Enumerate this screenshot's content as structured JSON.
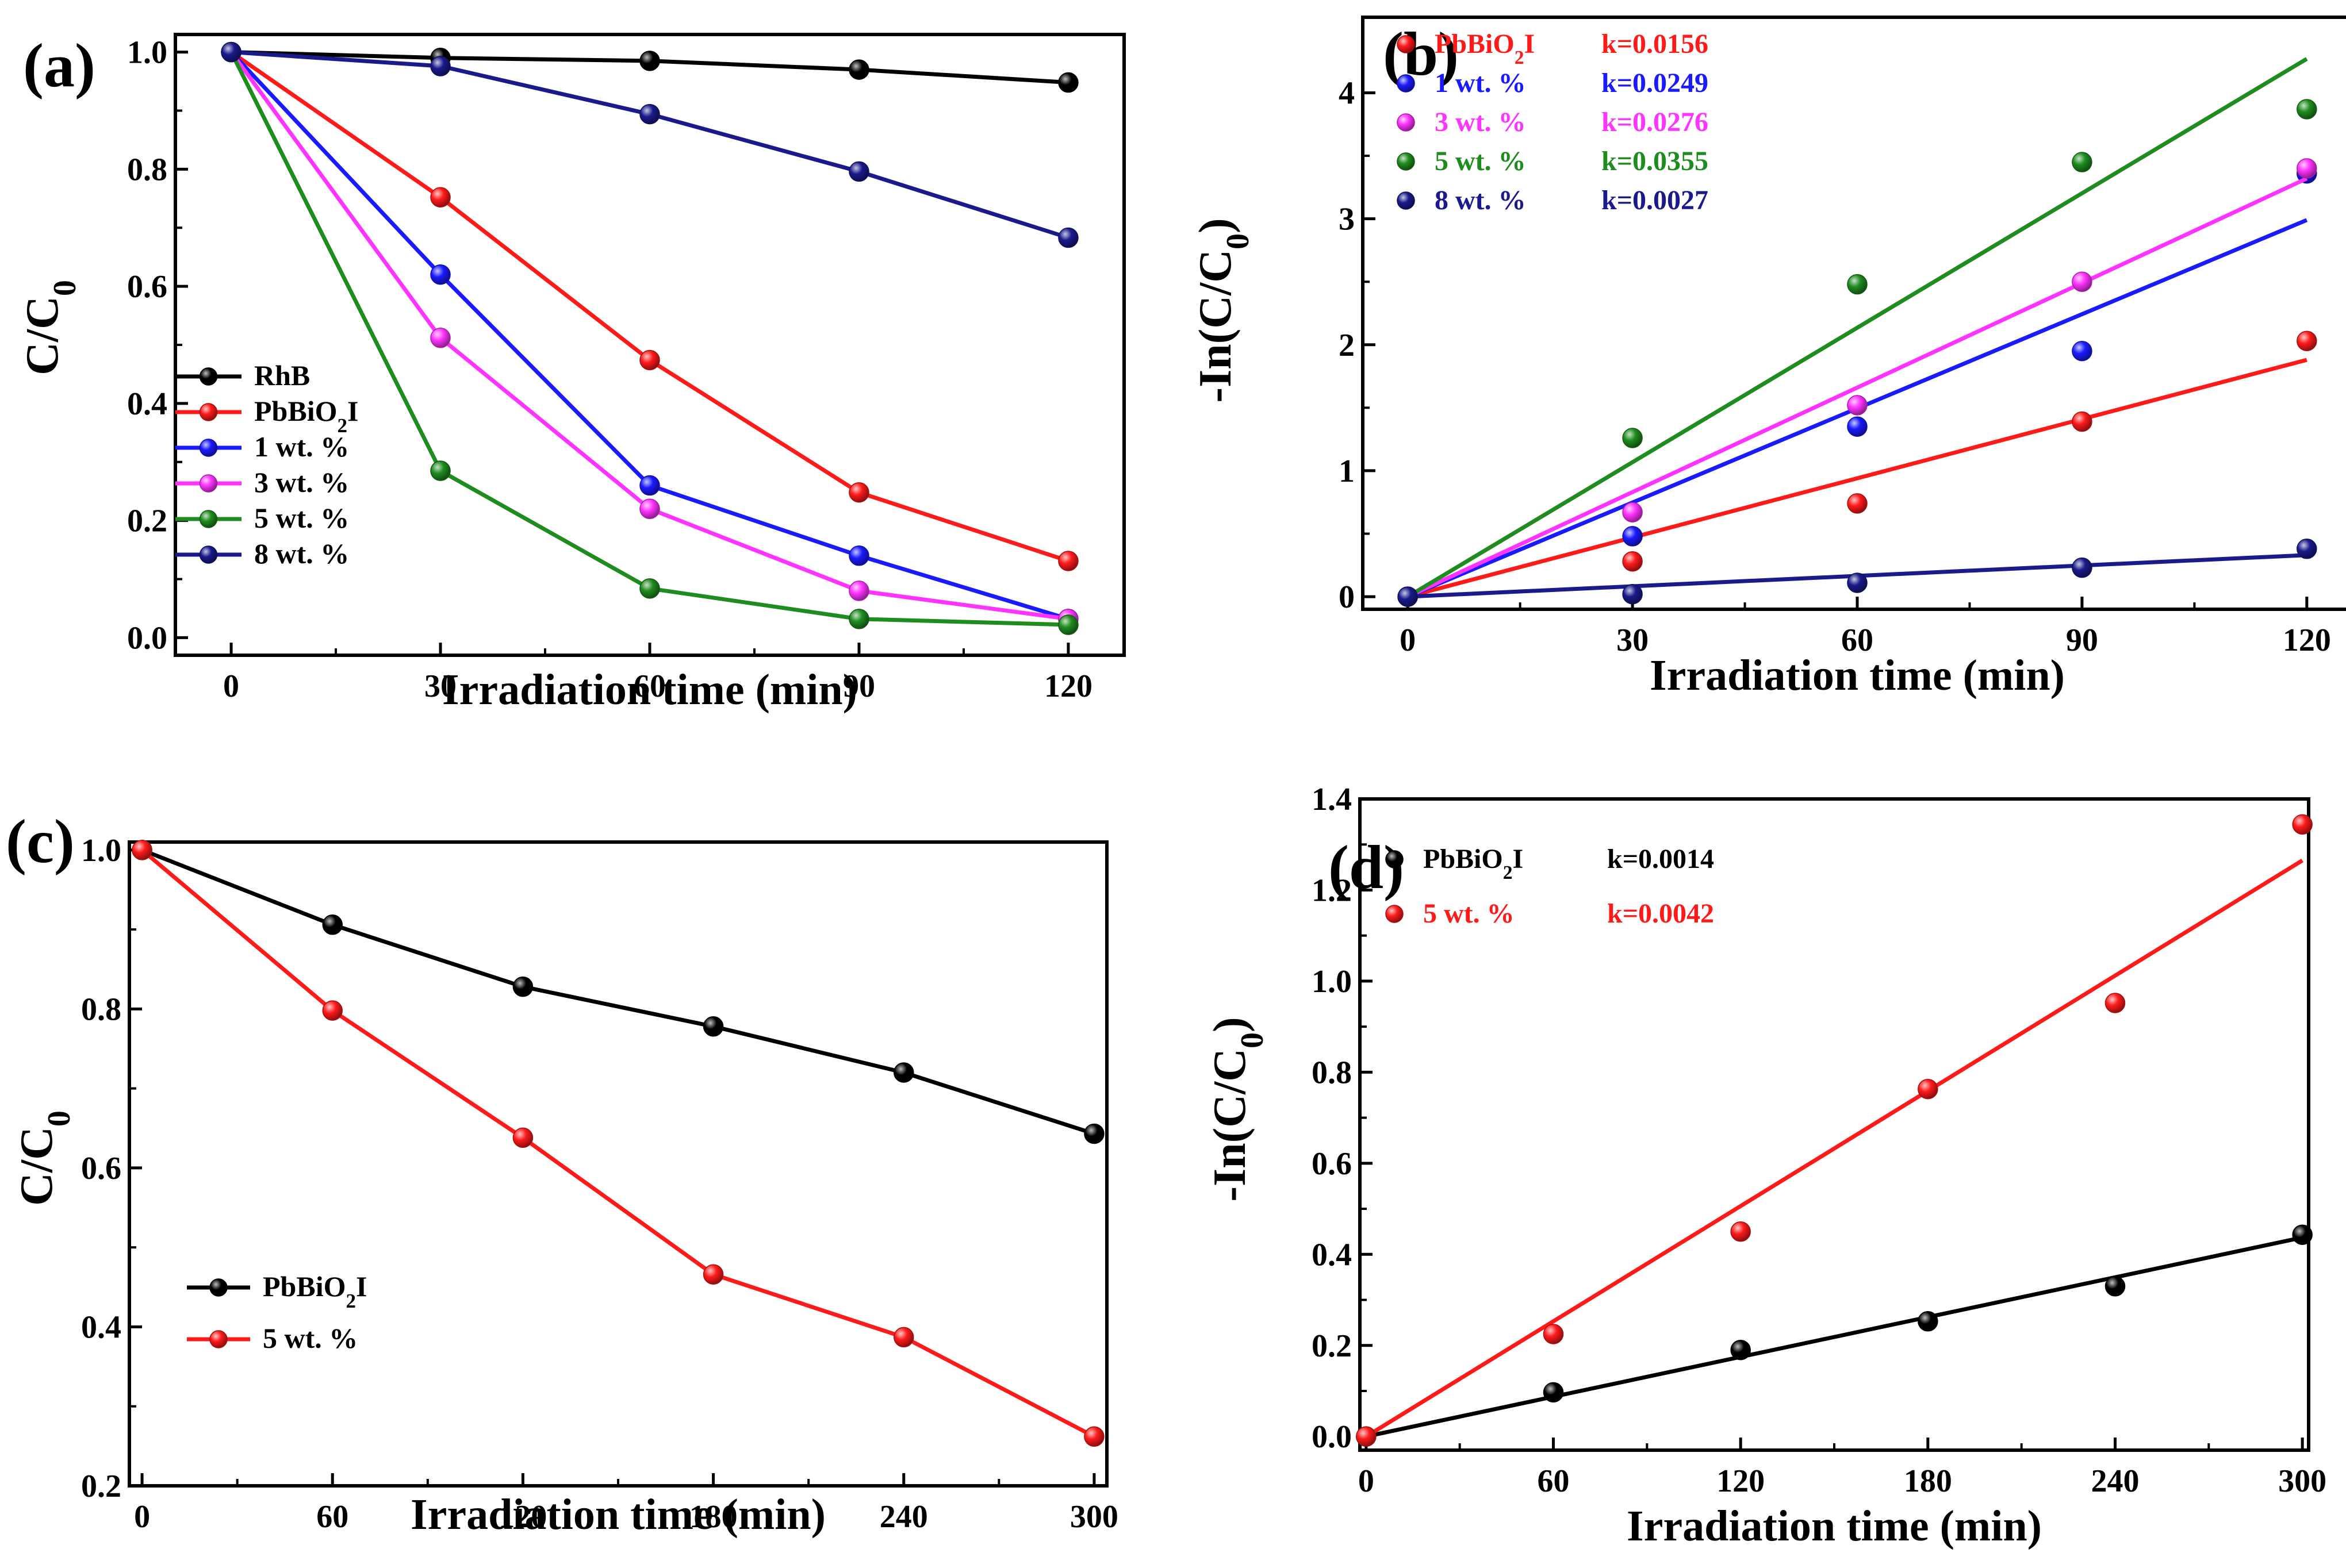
{
  "figure": {
    "panels": [
      "(a)",
      "(b)",
      "(c)",
      "(d)"
    ]
  },
  "chart_data": [
    {
      "panel_label": "(a)",
      "type": "line",
      "xlabel": "Irradiation time (min)",
      "ylabel": {
        "main": "C/C",
        "sub": "0"
      },
      "xlim": [
        -8,
        128
      ],
      "ylim": [
        -0.03,
        1.03
      ],
      "xticks": [
        0,
        30,
        60,
        90,
        120
      ],
      "yticks": [
        0.0,
        0.2,
        0.4,
        0.6,
        0.8,
        1.0
      ],
      "ytick_decimals": 1,
      "legend_position": "bottom-left",
      "series": [
        {
          "name": "RhB",
          "color": "#000000",
          "x": [
            0,
            30,
            60,
            90,
            120
          ],
          "y": [
            1.0,
            0.99,
            0.985,
            0.97,
            0.948
          ]
        },
        {
          "name": "PbBiO",
          "name_sub": "2",
          "name_tail": "I",
          "color": "#ff1a1a",
          "x": [
            0,
            30,
            60,
            90,
            120
          ],
          "y": [
            1.0,
            0.752,
            0.474,
            0.248,
            0.131
          ]
        },
        {
          "name": "1 wt. %",
          "color": "#1a1aff",
          "x": [
            0,
            30,
            60,
            90,
            120
          ],
          "y": [
            1.0,
            0.62,
            0.26,
            0.14,
            0.032
          ]
        },
        {
          "name": "3 wt. %",
          "color": "#ff33ff",
          "x": [
            0,
            30,
            60,
            90,
            120
          ],
          "y": [
            1.0,
            0.512,
            0.22,
            0.08,
            0.032
          ]
        },
        {
          "name": "5 wt. %",
          "color": "#1e8c1e",
          "x": [
            0,
            30,
            60,
            90,
            120
          ],
          "y": [
            1.0,
            0.285,
            0.084,
            0.032,
            0.022
          ]
        },
        {
          "name": "8 wt. %",
          "color": "#1a1a8c",
          "x": [
            0,
            30,
            60,
            90,
            120
          ],
          "y": [
            1.0,
            0.976,
            0.894,
            0.796,
            0.683
          ]
        }
      ]
    },
    {
      "panel_label": "(b)",
      "type": "scatter",
      "xlabel": "Irradiation time (min)",
      "ylabel": {
        "main": "-In(C/C",
        "sub": "0",
        "tail": ")"
      },
      "xlim": [
        -6,
        126
      ],
      "ylim": [
        -0.1,
        4.6
      ],
      "xticks": [
        0,
        30,
        60,
        90,
        120
      ],
      "yticks": [
        0,
        1,
        2,
        3,
        4
      ],
      "ytick_decimals": 0,
      "legend_position": "top-left",
      "series": [
        {
          "name": "PbBiO",
          "name_sub": "2",
          "name_tail": "I",
          "k_label": "k=0.0156",
          "color": "#ff1a1a",
          "x": [
            0,
            30,
            60,
            90,
            120
          ],
          "y": [
            0,
            0.28,
            0.74,
            1.39,
            2.03
          ],
          "fit_end": 1.88
        },
        {
          "name": "1 wt. %",
          "k_label": "k=0.0249",
          "color": "#1a1aff",
          "x": [
            0,
            30,
            60,
            90,
            120
          ],
          "y": [
            0,
            0.48,
            1.35,
            1.95,
            3.36
          ],
          "fit_end": 2.99
        },
        {
          "name": "3 wt. %",
          "k_label": "k=0.0276",
          "color": "#ff33ff",
          "x": [
            0,
            30,
            60,
            90,
            120
          ],
          "y": [
            0,
            0.67,
            1.52,
            2.5,
            3.4
          ],
          "fit_end": 3.32
        },
        {
          "name": "5 wt. %",
          "k_label": "k=0.0355",
          "color": "#1e8c1e",
          "x": [
            0,
            30,
            60,
            90,
            120
          ],
          "y": [
            0,
            1.26,
            2.48,
            3.45,
            3.87
          ],
          "fit_end": 4.27
        },
        {
          "name": "8 wt. %",
          "k_label": "k=0.0027",
          "color": "#1a1a8c",
          "x": [
            0,
            30,
            60,
            90,
            120
          ],
          "y": [
            0,
            0.02,
            0.11,
            0.23,
            0.38
          ],
          "fit_end": 0.33
        }
      ]
    },
    {
      "panel_label": "(c)",
      "type": "line",
      "xlabel": "Irradiation time (min)",
      "ylabel": {
        "main": "C/C",
        "sub": "0"
      },
      "xlim": [
        -4,
        304
      ],
      "ylim": [
        0.2,
        1.01
      ],
      "xticks": [
        0,
        60,
        120,
        180,
        240,
        300
      ],
      "yticks": [
        0.2,
        0.4,
        0.6,
        0.8,
        1.0
      ],
      "ytick_decimals": 1,
      "legend_position": "bottom-left",
      "series": [
        {
          "name": "PbBiO",
          "name_sub": "2",
          "name_tail": "I",
          "color": "#000000",
          "x": [
            0,
            60,
            120,
            180,
            240,
            300
          ],
          "y": [
            1.0,
            0.906,
            0.828,
            0.778,
            0.72,
            0.643
          ]
        },
        {
          "name": "5 wt. %",
          "color": "#ff1a1a",
          "x": [
            0,
            60,
            120,
            180,
            240,
            300
          ],
          "y": [
            1.0,
            0.798,
            0.638,
            0.466,
            0.387,
            0.262
          ]
        }
      ]
    },
    {
      "panel_label": "(d)",
      "type": "scatter",
      "xlabel": "Irradiation time (min)",
      "ylabel": {
        "main": "-In(C/C",
        "sub": "0",
        "tail": ")"
      },
      "xlim": [
        -2,
        302
      ],
      "ylim": [
        -0.03,
        1.4
      ],
      "xticks": [
        0,
        60,
        120,
        180,
        240,
        300
      ],
      "yticks": [
        0.0,
        0.2,
        0.4,
        0.6,
        0.8,
        1.0,
        1.2,
        1.4
      ],
      "ytick_decimals": 1,
      "legend_position": "top-left",
      "series": [
        {
          "name": "PbBiO",
          "name_sub": "2",
          "name_tail": "I",
          "k_label": "k=0.0014",
          "color": "#000000",
          "x": [
            0,
            60,
            120,
            180,
            240,
            300
          ],
          "y": [
            0,
            0.097,
            0.19,
            0.253,
            0.33,
            0.443
          ],
          "fit_end": 0.437
        },
        {
          "name": "5 wt. %",
          "k_label": "k=0.0042",
          "color": "#ff1a1a",
          "x": [
            0,
            60,
            120,
            180,
            240,
            300
          ],
          "y": [
            0,
            0.225,
            0.45,
            0.763,
            0.952,
            1.344
          ],
          "fit_end": 1.265
        }
      ]
    }
  ]
}
